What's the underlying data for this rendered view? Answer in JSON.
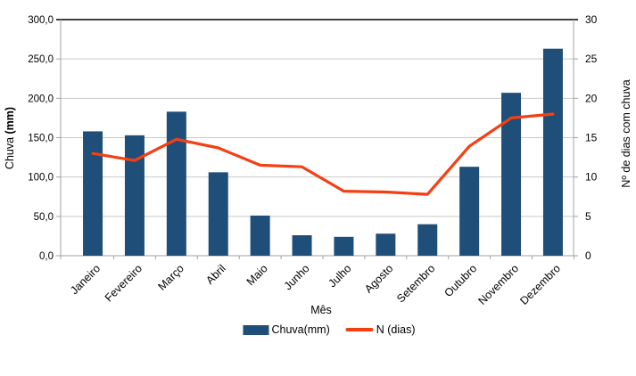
{
  "chart_data": {
    "type": "combo",
    "categories": [
      "Janeiro",
      "Fevereiro",
      "Março",
      "Abril",
      "Maio",
      "Junho",
      "Julho",
      "Agosto",
      "Setembro",
      "Outubro",
      "Novembro",
      "Dezembro"
    ],
    "series": [
      {
        "name": "Chuva(mm)",
        "type": "bar",
        "axis": "left",
        "color": "#1F4E79",
        "values": [
          158,
          153,
          183,
          106,
          51,
          26,
          24,
          28,
          40,
          113,
          207,
          263
        ]
      },
      {
        "name": "N (dias)",
        "type": "line",
        "axis": "right",
        "color": "#F43F14",
        "values": [
          13,
          12.1,
          14.8,
          13.7,
          11.5,
          11.3,
          8.2,
          8.1,
          7.8,
          13.9,
          17.5,
          18
        ]
      }
    ],
    "x_axis": {
      "title": "Mês"
    },
    "left_axis": {
      "title": "Chuva (mm)",
      "title_plain": "Chuva ",
      "title_bold": "(mm)",
      "min": 0,
      "max": 300,
      "step": 50,
      "tick_labels": [
        "0,0",
        "50,0",
        "100,0",
        "150,0",
        "200,0",
        "250,0",
        "300,0"
      ]
    },
    "right_axis": {
      "title": "Nº de dias com chuva",
      "min": 0,
      "max": 30,
      "step": 5,
      "tick_labels": [
        "0",
        "5",
        "10",
        "15",
        "20",
        "25",
        "30"
      ]
    },
    "grid": true,
    "legend_position": "bottom"
  },
  "colors": {
    "background": "#FFFFFF",
    "gridline": "#C9C9C9",
    "axis": "#A3A3A3",
    "top_border": "#000000",
    "text": "#000000"
  }
}
